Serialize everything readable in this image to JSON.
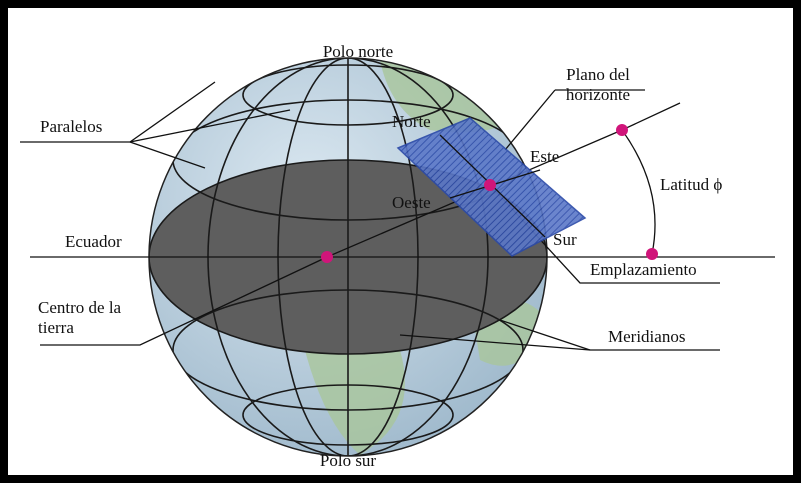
{
  "labels": {
    "polo_norte": "Polo norte",
    "plano_1": "Plano del",
    "plano_2": "horizonte",
    "paralelos": "Paralelos",
    "norte": "Norte",
    "este": "Este",
    "latitud": "Latitud ϕ",
    "oeste": "Oeste",
    "ecuador": "Ecuador",
    "sur": "Sur",
    "emplazamiento": "Emplazamiento",
    "centro_1": "Centro de la",
    "centro_2": "tierra",
    "meridianos": "Meridianos",
    "polo_sur": "Polo sur"
  }
}
